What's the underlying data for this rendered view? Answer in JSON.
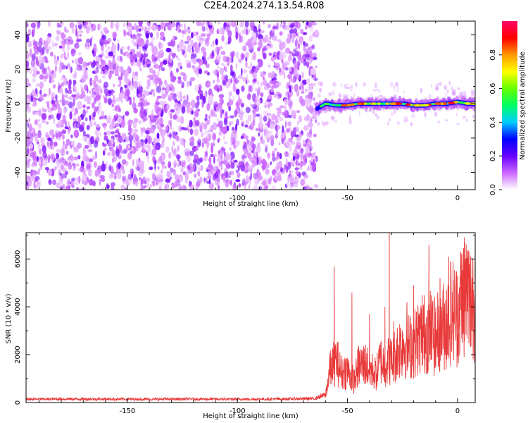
{
  "title": "C2E4.2024.274.13.54.R08",
  "chart_data": [
    {
      "type": "heatmap",
      "xlabel": "Height of straight line (km)",
      "ylabel": "Frequency (Hz)",
      "xlim": [
        -196,
        8
      ],
      "ylim": [
        -50,
        48
      ],
      "xticks": [
        -150,
        -100,
        -50,
        0
      ],
      "yticks": [
        -40,
        -20,
        0,
        20,
        40
      ],
      "grid": false,
      "noise_region_x": [
        -196,
        -64
      ],
      "signal_start_x": -64,
      "signal_track": {
        "x": [
          -64,
          -60,
          -55,
          -50,
          -45,
          -40,
          -35,
          -30,
          -25,
          -20,
          -15,
          -10,
          -5,
          0,
          5,
          8
        ],
        "y": [
          -3,
          0,
          -1,
          -1,
          0,
          0,
          0,
          0,
          0,
          -1,
          -1,
          0,
          0,
          1,
          0,
          0
        ]
      },
      "colorbar": {
        "label": "Normalized spectral amplitude",
        "range": [
          0,
          1
        ],
        "ticks": [
          "0.0",
          "0.2",
          "0.4",
          "0.6",
          "0.8"
        ],
        "colors": [
          "#ffffff",
          "#cc66ff",
          "#6600ff",
          "#0000ff",
          "#00ccff",
          "#00ff66",
          "#66ff00",
          "#ffff00",
          "#ff9900",
          "#ff0000",
          "#ff0066"
        ]
      }
    },
    {
      "type": "line",
      "xlabel": "Height of straight line (km)",
      "ylabel": "SNR (10 * v/v)",
      "xlim": [
        -196,
        8
      ],
      "ylim": [
        0,
        7100
      ],
      "xticks": [
        -150,
        -100,
        -50,
        0
      ],
      "yticks": [
        0,
        2000,
        4000,
        6000
      ],
      "grid": false,
      "color": "#e83a3a",
      "series": [
        {
          "x": [
            -196,
            -180,
            -160,
            -140,
            -120,
            -100,
            -80,
            -65,
            -60,
            -58,
            -55,
            -53,
            -50,
            -47,
            -45,
            -42,
            -40,
            -37,
            -35,
            -33,
            -31,
            -30,
            -28,
            -25,
            -22,
            -20,
            -18,
            -15,
            -13,
            -10,
            -8,
            -5,
            -3,
            -1,
            0,
            2,
            4,
            6,
            8
          ],
          "y": [
            150,
            160,
            155,
            150,
            158,
            152,
            160,
            180,
            350,
            1500,
            2000,
            1400,
            1500,
            1000,
            1700,
            1800,
            1600,
            1300,
            2000,
            1700,
            2000,
            1900,
            2300,
            2800,
            2600,
            2700,
            3000,
            3200,
            3400,
            3000,
            3500,
            3600,
            4300,
            4200,
            4000,
            5000,
            5200,
            4700,
            4800
          ]
        }
      ],
      "peaks": {
        "x": [
          -56,
          -48,
          -40,
          -33,
          -31,
          -29,
          -23,
          -20,
          -16,
          -13,
          -10,
          -8,
          -5,
          -4,
          -2,
          0,
          2,
          3,
          5,
          6,
          7,
          8
        ],
        "y": [
          5700,
          4600,
          3700,
          4000,
          7100,
          3400,
          4200,
          4900,
          4500,
          6600,
          3800,
          5200,
          4700,
          6100,
          3900,
          5300,
          5600,
          6900,
          5700,
          6100,
          5400,
          7000
        ]
      }
    }
  ]
}
